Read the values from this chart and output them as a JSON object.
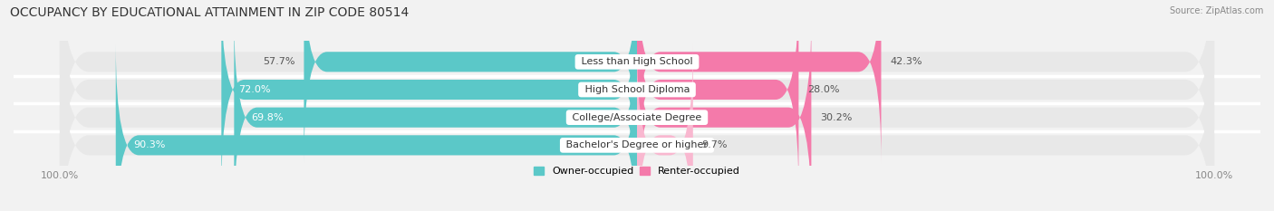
{
  "title": "OCCUPANCY BY EDUCATIONAL ATTAINMENT IN ZIP CODE 80514",
  "source": "Source: ZipAtlas.com",
  "categories": [
    "Less than High School",
    "High School Diploma",
    "College/Associate Degree",
    "Bachelor's Degree or higher"
  ],
  "owner_pct": [
    57.7,
    72.0,
    69.8,
    90.3
  ],
  "renter_pct": [
    42.3,
    28.0,
    30.2,
    9.7
  ],
  "owner_color": "#5bc8c8",
  "renter_color": "#f47aaa",
  "renter_color_light": "#f9b8d0",
  "bg_color": "#f2f2f2",
  "row_bg_color": "#e8e8e8",
  "title_fontsize": 10,
  "label_fontsize": 8,
  "tick_fontsize": 8,
  "source_fontsize": 7,
  "bar_height": 0.72,
  "row_sep_color": "#ffffff",
  "owner_label_color_inside": "#ffffff",
  "owner_label_color_outside": "#555555",
  "renter_label_color": "#555555"
}
